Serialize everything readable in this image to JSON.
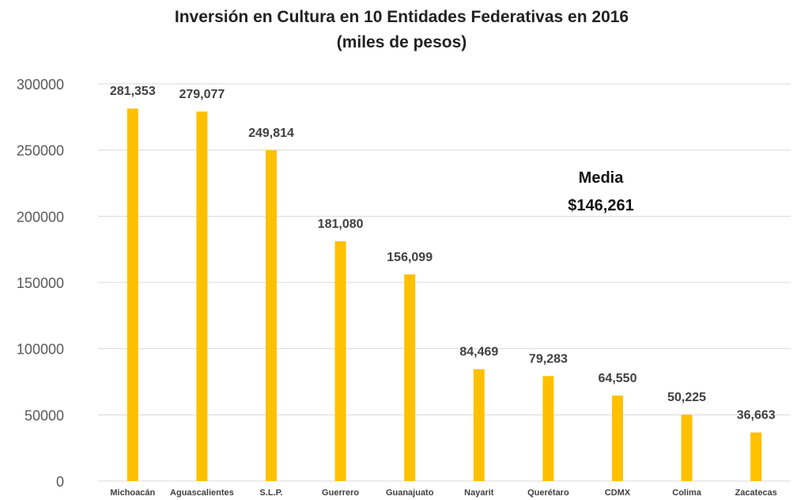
{
  "chart_data": {
    "type": "bar",
    "title": "Inversión en Cultura en 10 Entidades Federativas en 2016",
    "subtitle": "(miles de pesos)",
    "xlabel": "",
    "ylabel": "",
    "categories": [
      "Michoacán",
      "Aguascalientes",
      "S.L.P.",
      "Guerrero",
      "Guanajuato",
      "Nayarit",
      "Querétaro",
      "CDMX",
      "Colima",
      "Zacatecas"
    ],
    "values": [
      281353,
      279077,
      249814,
      181080,
      156099,
      84469,
      79283,
      64550,
      50225,
      36663
    ],
    "data_labels": [
      "281,353",
      "279,077",
      "249,814",
      "181,080",
      "156,099",
      "84,469",
      "79,283",
      "64,550",
      "50,225",
      "36,663"
    ],
    "ylim": [
      0,
      300000
    ],
    "yticks": [
      "0",
      "50000",
      "100000",
      "150000",
      "200000",
      "250000",
      "300000"
    ],
    "ytick_values": [
      0,
      50000,
      100000,
      150000,
      200000,
      250000,
      300000
    ],
    "grid": true,
    "bar_color": "#FFC000",
    "annotation": {
      "line1": "Media",
      "line2": "$146,261"
    }
  }
}
